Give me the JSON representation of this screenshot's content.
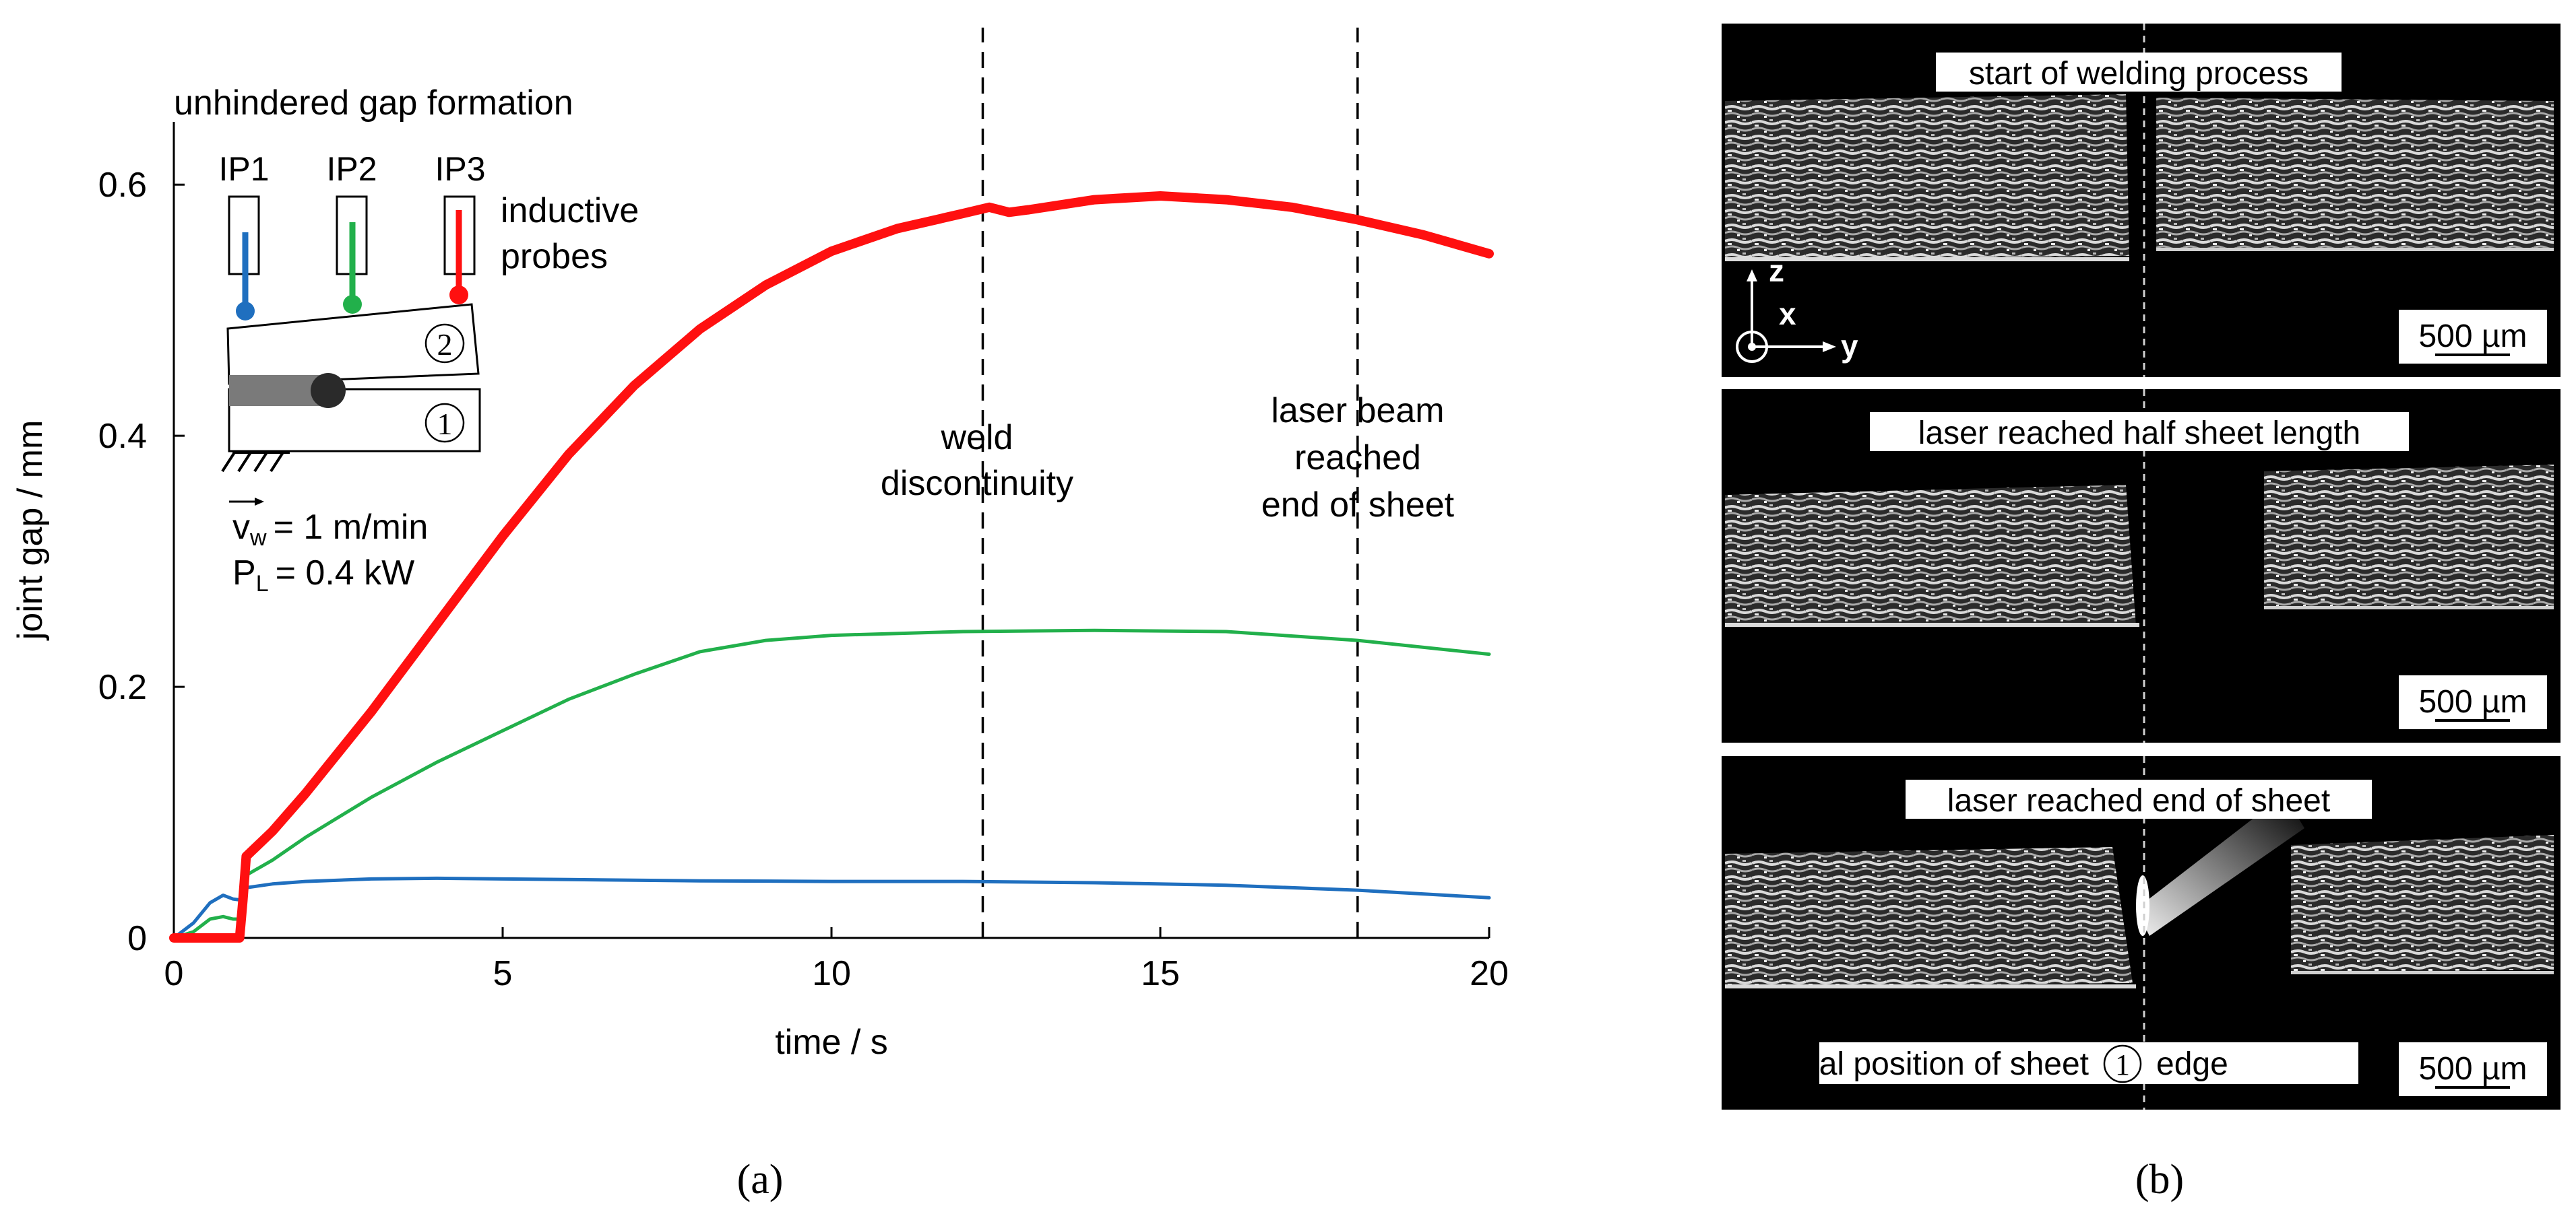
{
  "chart_data": {
    "type": "line",
    "title": "unhindered gap formation",
    "xlabel": "time / s",
    "ylabel": "joint gap / mm",
    "xlim": [
      0,
      20
    ],
    "ylim": [
      0,
      0.65
    ],
    "xticks": [
      0,
      5,
      10,
      15,
      20
    ],
    "yticks": [
      0,
      0.2,
      0.4,
      0.6
    ],
    "ytick_labels": [
      "0",
      "0.2",
      "0.4",
      "0.6"
    ],
    "grid": false,
    "series": [
      {
        "name": "IP1",
        "color": "#1f6fbf",
        "width": 5,
        "x": [
          0,
          0.3,
          0.55,
          0.75,
          0.9,
          1.05,
          1.1,
          1.5,
          2,
          3,
          4,
          5,
          6,
          8,
          10,
          12,
          14,
          16,
          18,
          20
        ],
        "y": [
          0,
          0.012,
          0.028,
          0.034,
          0.031,
          0.03,
          0.04,
          0.043,
          0.045,
          0.047,
          0.0475,
          0.047,
          0.0465,
          0.0455,
          0.045,
          0.045,
          0.044,
          0.042,
          0.038,
          0.032
        ]
      },
      {
        "name": "IP2",
        "color": "#22b04b",
        "width": 5,
        "x": [
          0,
          0.3,
          0.55,
          0.75,
          0.9,
          1.05,
          1.1,
          1.5,
          2,
          3,
          4,
          5,
          6,
          7,
          8,
          9,
          10,
          12,
          14,
          16,
          18,
          20
        ],
        "y": [
          0,
          0.005,
          0.015,
          0.017,
          0.015,
          0.015,
          0.05,
          0.062,
          0.08,
          0.112,
          0.14,
          0.165,
          0.19,
          0.21,
          0.228,
          0.237,
          0.241,
          0.244,
          0.245,
          0.244,
          0.237,
          0.226
        ]
      },
      {
        "name": "IP3",
        "color": "#ff1010",
        "width": 14,
        "x": [
          0,
          1.0,
          1.05,
          1.1,
          1.5,
          2,
          3,
          4,
          5,
          6,
          7,
          8,
          9,
          10,
          11,
          12,
          12.4,
          12.7,
          13,
          14,
          15,
          16,
          17,
          18,
          19,
          20
        ],
        "y": [
          0,
          0,
          0.03,
          0.065,
          0.085,
          0.115,
          0.18,
          0.25,
          0.32,
          0.385,
          0.44,
          0.485,
          0.52,
          0.547,
          0.565,
          0.577,
          0.582,
          0.578,
          0.58,
          0.588,
          0.591,
          0.588,
          0.582,
          0.572,
          0.56,
          0.545
        ]
      }
    ],
    "vlines": [
      {
        "x": 12.3,
        "label_lines": [
          "weld",
          "discontinuity"
        ]
      },
      {
        "x": 18.0,
        "label_lines": [
          "laser beam",
          "reached",
          "end of sheet"
        ]
      }
    ],
    "annotations": {
      "probe_labels": [
        "IP1",
        "IP2",
        "IP3"
      ],
      "probe_text": [
        "inductive",
        "probes"
      ],
      "sheet_labels": [
        "2",
        "1"
      ],
      "velocity": {
        "symbol": "v",
        "subscript": "w",
        "value": "= 1 m/min"
      },
      "power": {
        "symbol": "P",
        "subscript": "L",
        "value": "= 0.4 kW"
      }
    }
  },
  "panel_a_label": "(a)",
  "panel_b_label": "(b)",
  "images": [
    {
      "caption": "start of welding process",
      "scale": "500 µm",
      "axes": {
        "z": "z",
        "x": "x",
        "y": "y"
      }
    },
    {
      "caption": "laser reached half sheet length",
      "scale": "500 µm"
    },
    {
      "caption": "laser reached end of sheet",
      "bottom_caption_pre": "initial position of sheet",
      "bottom_caption_num": "1",
      "bottom_caption_post": "edge",
      "scale": "500 µm"
    }
  ]
}
